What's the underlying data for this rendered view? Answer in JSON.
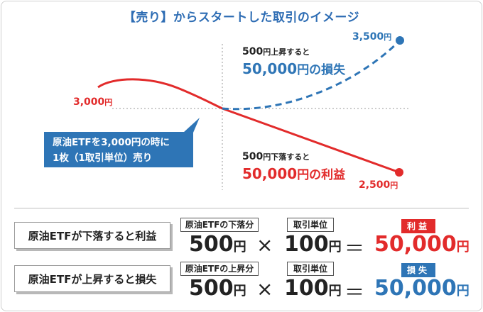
{
  "title": "【売り】からスタートした取引のイメージ",
  "chart": {
    "start_label": "3,000",
    "start_unit": "円",
    "high_label": "3,500",
    "high_unit": "円",
    "low_label": "2,500",
    "low_unit": "円",
    "loss_note_small_value": "500",
    "loss_note_small_unit": "円",
    "loss_note_small_suffix": "上昇すると",
    "loss_note_big_value": "50,000",
    "loss_note_big_suffix": "円の損失",
    "profit_note_small_value": "500",
    "profit_note_small_unit": "円",
    "profit_note_small_suffix": "下落すると",
    "profit_note_big_value": "50,000",
    "profit_note_big_suffix": "円の利益",
    "bubble_line1": "原油ETFを3,000円の時に",
    "bubble_line2": "1枚（1取引単位）売り",
    "colors": {
      "down": "#e22b2b",
      "up": "#2e75b6"
    }
  },
  "rows": [
    {
      "label": "原油ETFが下落すると利益",
      "tag1": "原油ETFの下落分",
      "value1": "500",
      "unit1": "円",
      "op1": "×",
      "tag2": "取引単位",
      "value2": "100",
      "unit2": "円",
      "op2": "＝",
      "badge": "利益",
      "result": "50,000",
      "result_unit": "円",
      "color": "#e22b2b"
    },
    {
      "label": "原油ETFが上昇すると損失",
      "tag1": "原油ETFの上昇分",
      "value1": "500",
      "unit1": "円",
      "op1": "×",
      "tag2": "取引単位",
      "value2": "100",
      "unit2": "円",
      "op2": "＝",
      "badge": "損失",
      "result": "50,000",
      "result_unit": "円",
      "color": "#2e75b6"
    }
  ]
}
